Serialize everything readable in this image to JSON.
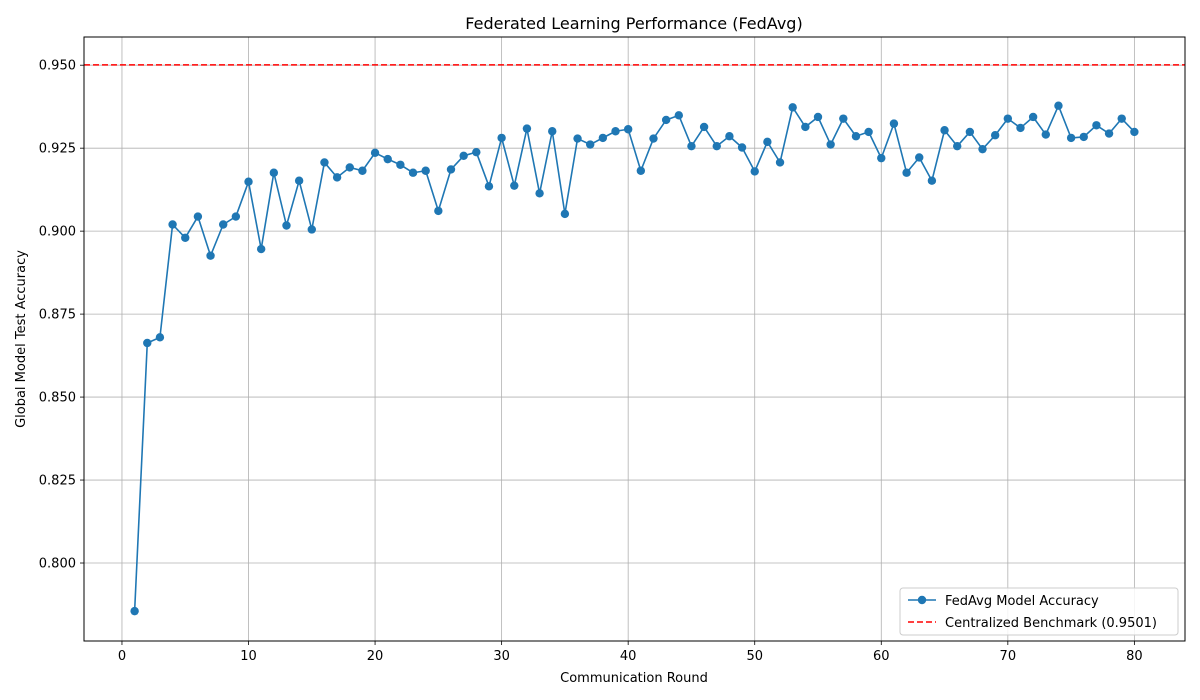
{
  "chart_data": {
    "type": "line",
    "title": "Federated Learning Performance (FedAvg)",
    "xlabel": "Communication Round",
    "ylabel": "Global Model Test Accuracy",
    "xlim": [
      -3,
      84
    ],
    "ylim": [
      0.7765,
      0.9585
    ],
    "x_ticks": [
      0,
      10,
      20,
      30,
      40,
      50,
      60,
      70,
      80
    ],
    "x_tick_labels": [
      "0",
      "10",
      "20",
      "30",
      "40",
      "50",
      "60",
      "70",
      "80"
    ],
    "y_ticks": [
      0.8,
      0.825,
      0.85,
      0.875,
      0.9,
      0.925,
      0.95
    ],
    "y_tick_labels": [
      "0.800",
      "0.825",
      "0.850",
      "0.875",
      "0.900",
      "0.925",
      "0.950"
    ],
    "grid": true,
    "legend_position": "lower-right",
    "series": [
      {
        "name": "FedAvg Model Accuracy",
        "color": "#1f77b4",
        "marker": "circle",
        "x": [
          1,
          2,
          3,
          4,
          5,
          6,
          7,
          8,
          9,
          10,
          11,
          12,
          13,
          14,
          15,
          16,
          17,
          18,
          19,
          20,
          21,
          22,
          23,
          24,
          25,
          26,
          27,
          28,
          29,
          30,
          31,
          32,
          33,
          34,
          35,
          36,
          37,
          38,
          39,
          40,
          41,
          42,
          43,
          44,
          45,
          46,
          47,
          48,
          49,
          50,
          51,
          52,
          53,
          54,
          55,
          56,
          57,
          58,
          59,
          60,
          61,
          62,
          63,
          64,
          65,
          66,
          67,
          68,
          69,
          70,
          71,
          72,
          73,
          74,
          75,
          76,
          77,
          78,
          79,
          80
        ],
        "y": [
          0.7855,
          0.8663,
          0.868,
          0.902,
          0.898,
          0.9044,
          0.8926,
          0.902,
          0.9044,
          0.9149,
          0.8946,
          0.9176,
          0.9017,
          0.9152,
          0.9005,
          0.9207,
          0.9162,
          0.9192,
          0.9182,
          0.9236,
          0.9217,
          0.92,
          0.9176,
          0.9182,
          0.9061,
          0.9186,
          0.9227,
          0.9238,
          0.9135,
          0.9281,
          0.9137,
          0.9309,
          0.9114,
          0.9301,
          0.9052,
          0.9279,
          0.9261,
          0.9281,
          0.9301,
          0.9307,
          0.9182,
          0.9279,
          0.9335,
          0.9349,
          0.9256,
          0.9314,
          0.9256,
          0.9286,
          0.9252,
          0.918,
          0.9269,
          0.9207,
          0.9373,
          0.9314,
          0.9344,
          0.9261,
          0.9339,
          0.9286,
          0.9299,
          0.922,
          0.9324,
          0.9176,
          0.9222,
          0.9152,
          0.9304,
          0.9256,
          0.9299,
          0.9247,
          0.9289,
          0.9339,
          0.9311,
          0.9344,
          0.9291,
          0.9378,
          0.9281,
          0.9284,
          0.9319,
          0.9294,
          0.9339,
          0.9299
        ]
      }
    ],
    "reference_lines": [
      {
        "name": "Centralized Benchmark (0.9501)",
        "y": 0.9501,
        "color": "#ff0000",
        "style": "dashed"
      }
    ]
  }
}
